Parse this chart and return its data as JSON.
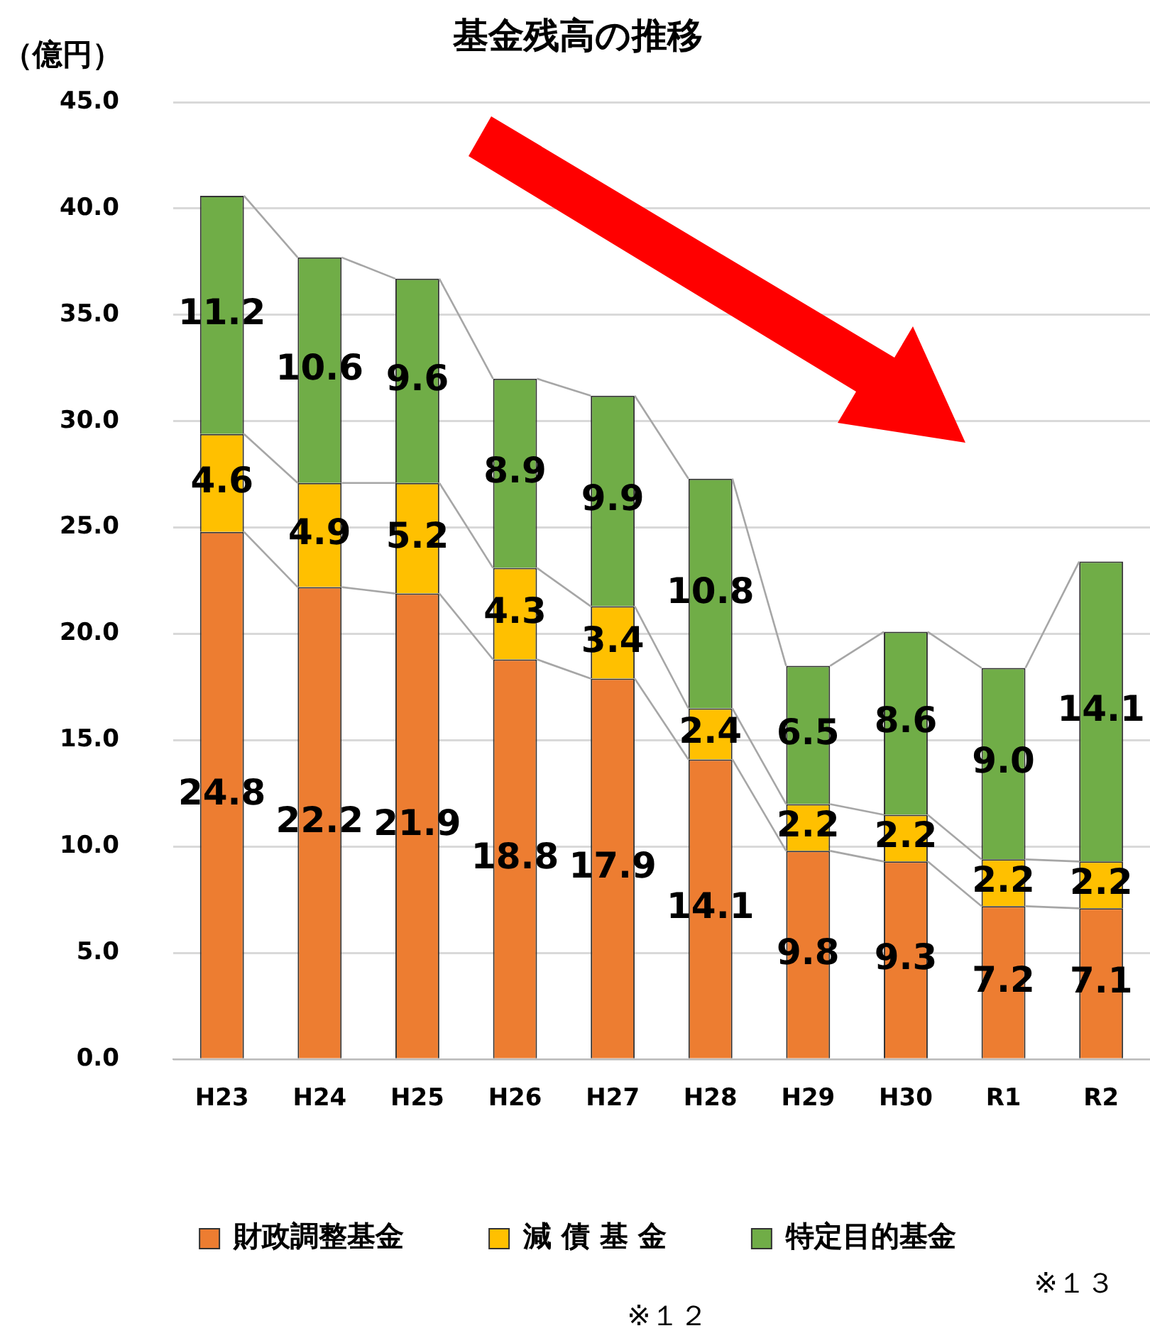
{
  "chart_data": {
    "type": "bar",
    "title": "基金残高の推移",
    "ylabel": "（億円）",
    "categories": [
      "H23",
      "H24",
      "H25",
      "H26",
      "H27",
      "H28",
      "H29",
      "H30",
      "R1",
      "R2"
    ],
    "series": [
      {
        "name": "財政調整基金",
        "color": "#ed7d31",
        "values": [
          24.8,
          22.2,
          21.9,
          18.8,
          17.9,
          14.1,
          9.8,
          9.3,
          7.2,
          7.1
        ],
        "value_labels": [
          "24.8",
          "22.2",
          "21.9",
          "18.8",
          "17.9",
          "14.1",
          "9.8",
          "9.3",
          "7.2",
          "7.1"
        ]
      },
      {
        "name": "減 債 基 金",
        "color": "#ffc000",
        "values": [
          4.6,
          4.9,
          5.2,
          4.3,
          3.4,
          2.4,
          2.2,
          2.2,
          2.2,
          2.2
        ],
        "value_labels": [
          "4.6",
          "4.9",
          "5.2",
          "4.3",
          "3.4",
          "2.4",
          "2.2",
          "2.2",
          "2.2",
          "2.2"
        ]
      },
      {
        "name": "特定目的基金",
        "color": "#70ad47",
        "values": [
          11.2,
          10.6,
          9.6,
          8.9,
          9.9,
          10.8,
          6.5,
          8.6,
          9.0,
          14.1
        ],
        "value_labels": [
          "11.2",
          "10.6",
          "9.6",
          "8.9",
          "9.9",
          "10.8",
          "6.5",
          "8.6",
          "9.0",
          "14.1"
        ]
      }
    ],
    "stacked": true,
    "ylim": [
      0,
      45
    ],
    "yticks": [
      {
        "value": 0,
        "label": "0.0"
      },
      {
        "value": 5,
        "label": "5.0"
      },
      {
        "value": 10,
        "label": "10.0"
      },
      {
        "value": 15,
        "label": "15.0"
      },
      {
        "value": 20,
        "label": "20.0"
      },
      {
        "value": 25,
        "label": "25.0"
      },
      {
        "value": 30,
        "label": "30.0"
      },
      {
        "value": 35,
        "label": "35.0"
      },
      {
        "value": 40,
        "label": "40.0"
      },
      {
        "value": 45,
        "label": "45.0"
      }
    ],
    "grid": "y",
    "legend": "bottom",
    "annotations": [
      "※１３",
      "※１２"
    ]
  }
}
